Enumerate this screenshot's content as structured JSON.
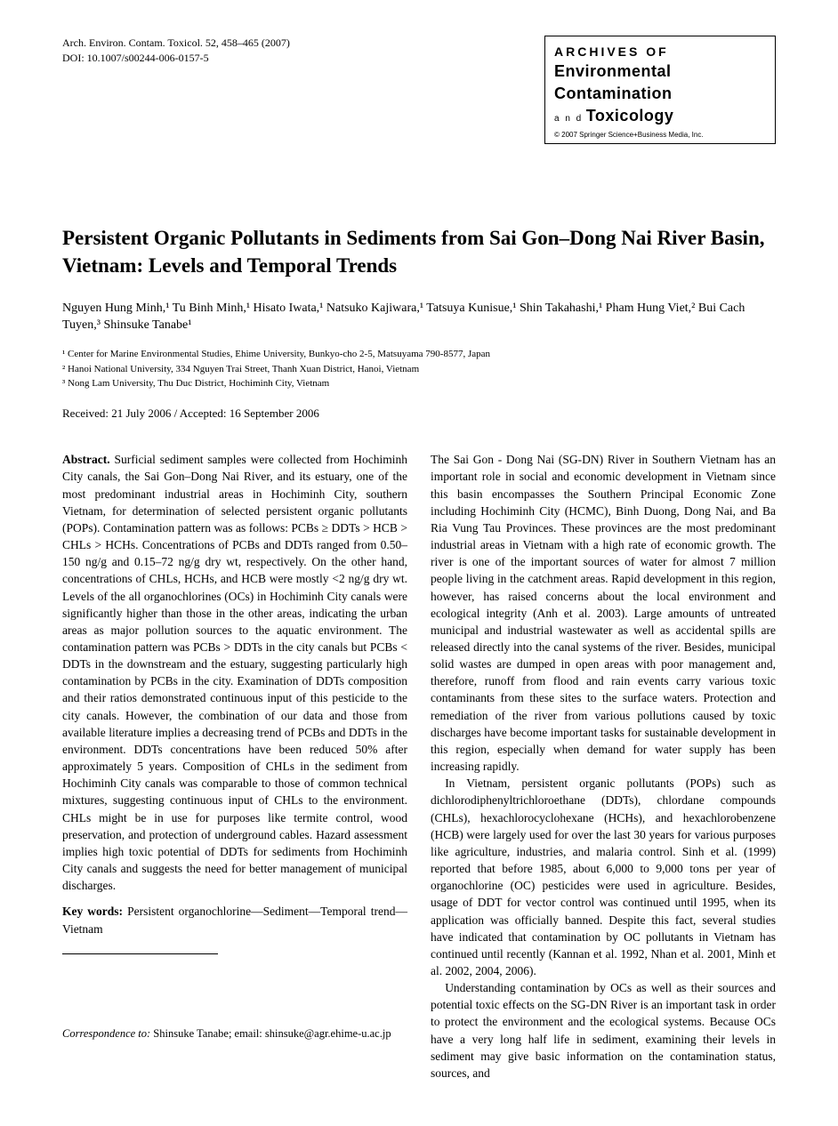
{
  "header": {
    "citation": "Arch. Environ. Contam. Toxicol. 52, 458–465 (2007)",
    "doi": "DOI: 10.1007/s00244-006-0157-5",
    "journal_box": {
      "line1": "ARCHIVES OF",
      "line2_bold_first": "E",
      "line2_rest": "nvironmental",
      "line3_bold_first": "C",
      "line3_rest": "ontamination",
      "line4_small": "a n d",
      "line4_bold_first": "T",
      "line4_rest": "oxicology",
      "copyright": "© 2007 Springer Science+Business Media, Inc."
    }
  },
  "title": "Persistent Organic Pollutants in Sediments from Sai Gon–Dong Nai River Basin, Vietnam: Levels and Temporal Trends",
  "authors_html": "Nguyen Hung Minh,¹ Tu Binh Minh,¹ Hisato Iwata,¹ Natsuko Kajiwara,¹ Tatsuya Kunisue,¹ Shin Takahashi,¹ Pham Hung Viet,² Bui Cach Tuyen,³ Shinsuke Tanabe¹",
  "affiliations": {
    "a1": "¹ Center for Marine Environmental Studies, Ehime University, Bunkyo-cho 2-5, Matsuyama 790-8577, Japan",
    "a2": "² Hanoi National University, 334 Nguyen Trai Street, Thanh Xuan District, Hanoi, Vietnam",
    "a3": "³ Nong Lam University, Thu Duc District, Hochiminh City, Vietnam"
  },
  "received": "Received: 21 July 2006 / Accepted: 16 September 2006",
  "abstract": {
    "label": "Abstract.",
    "text": " Surficial sediment samples were collected from Hochiminh City canals, the Sai Gon–Dong Nai River, and its estuary, one of the most predominant industrial areas in Hochiminh City, southern Vietnam, for determination of selected persistent organic pollutants (POPs). Contamination pattern was as follows: PCBs ≥ DDTs > HCB > CHLs > HCHs. Concentrations of PCBs and DDTs ranged from 0.50–150 ng/g and 0.15–72 ng/g dry wt, respectively. On the other hand, concentrations of CHLs, HCHs, and HCB were mostly <2 ng/g dry wt. Levels of the all organochlorines (OCs) in Hochiminh City canals were significantly higher than those in the other areas, indicating the urban areas as major pollution sources to the aquatic environment. The contamination pattern was PCBs > DDTs in the city canals but PCBs < DDTs in the downstream and the estuary, suggesting particularly high contamination by PCBs in the city. Examination of DDTs composition and their ratios demonstrated continuous input of this pesticide to the city canals. However, the combination of our data and those from available literature implies a decreasing trend of PCBs and DDTs in the environment. DDTs concentrations have been reduced 50% after approximately 5 years. Composition of CHLs in the sediment from Hochiminh City canals was comparable to those of common technical mixtures, suggesting continuous input of CHLs to the environment. CHLs might be in use for purposes like termite control, wood preservation, and protection of underground cables. Hazard assessment implies high toxic potential of DDTs for sediments from Hochiminh City canals and suggests the need for better management of municipal discharges."
  },
  "keywords": {
    "label": "Key words:",
    "text": " Persistent organochlorine—Sediment—Temporal trend—Vietnam"
  },
  "correspondence": {
    "label": "Correspondence to:",
    "text": " Shinsuke Tanabe; email: shinsuke@agr.ehime-u.ac.jp"
  },
  "intro": {
    "p1": "The Sai Gon - Dong Nai (SG-DN) River in Southern Vietnam has an important role in social and economic development in Vietnam since this basin encompasses the Southern Principal Economic Zone including Hochiminh City (HCMC), Binh Duong, Dong Nai, and Ba Ria Vung Tau Provinces. These provinces are the most predominant industrial areas in Vietnam with a high rate of economic growth. The river is one of the important sources of water for almost 7 million people living in the catchment areas. Rapid development in this region, however, has raised concerns about the local environment and ecological integrity (Anh et al. 2003). Large amounts of untreated municipal and industrial wastewater as well as accidental spills are released directly into the canal systems of the river. Besides, municipal solid wastes are dumped in open areas with poor management and, therefore, runoff from flood and rain events carry various toxic contaminants from these sites to the surface waters. Protection and remediation of the river from various pollutions caused by toxic discharges have become important tasks for sustainable development in this region, especially when demand for water supply has been increasing rapidly.",
    "p2": "In Vietnam, persistent organic pollutants (POPs) such as dichlorodiphenyltrichloroethane (DDTs), chlordane compounds (CHLs), hexachlorocyclohexane (HCHs), and hexachlorobenzene (HCB) were largely used for over the last 30 years for various purposes like agriculture, industries, and malaria control. Sinh et al. (1999) reported that before 1985, about 6,000 to 9,000 tons per year of organochlorine (OC) pesticides were used in agriculture. Besides, usage of DDT for vector control was continued until 1995, when its application was officially banned. Despite this fact, several studies have indicated that contamination by OC pollutants in Vietnam has continued until recently (Kannan et al. 1992, Nhan et al. 2001, Minh et al. 2002, 2004, 2006).",
    "p3": "Understanding contamination by OCs as well as their sources and potential toxic effects on the SG-DN River is an important task in order to protect the environment and the ecological systems. Because OCs have a very long half life in sediment, examining their levels in sediment may give basic information on the contamination status, sources, and"
  }
}
